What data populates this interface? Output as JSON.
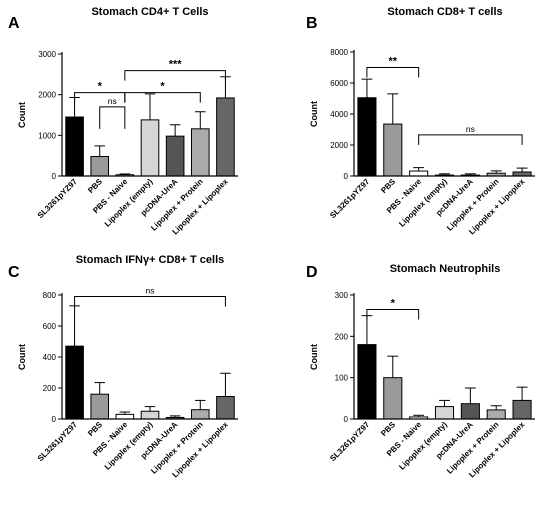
{
  "chart_data": [
    {
      "type": "bar",
      "panel": "A",
      "title": "Stomach CD4+ T Cells",
      "ylabel": "Count",
      "ylim": [
        0,
        3000
      ],
      "yticks": [
        0,
        1000,
        2000,
        3000
      ],
      "categories": [
        "SL3261pYZ97",
        "PBS",
        "PBS - Naive",
        "Lipoplex (empty)",
        "pcDNA-UreA",
        "Lipoplex + Protein",
        "Lipoplex + Lipoplex"
      ],
      "values": [
        1450,
        480,
        30,
        1380,
        980,
        1160,
        1920
      ],
      "errors": [
        480,
        260,
        20,
        640,
        280,
        420,
        520
      ],
      "colors": [
        "#000000",
        "#9a9a9a",
        "#ffffff",
        "#d6d6d6",
        "#555555",
        "#ababab",
        "#666666"
      ],
      "significance": [
        {
          "from": 0,
          "to": 2,
          "label": "*",
          "y": 2050
        },
        {
          "from": 1,
          "to": 2,
          "label": "ns",
          "y": 1700
        },
        {
          "from": 2,
          "to": 5,
          "label": "*",
          "y": 2050
        },
        {
          "from": 2,
          "to": 6,
          "label": "***",
          "y": 2590
        }
      ]
    },
    {
      "type": "bar",
      "panel": "B",
      "title": "Stomach CD8+ T cells",
      "ylabel": "Count",
      "ylim": [
        0,
        8000
      ],
      "yticks": [
        0,
        2000,
        4000,
        6000,
        8000
      ],
      "categories": [
        "SL3261pYZ97",
        "PBS",
        "PBS - Naive",
        "Lipoplex (empty)",
        "pcDNA-UreA",
        "Lipoplex + Protein",
        "Lipoplex + Lipoplex"
      ],
      "values": [
        5050,
        3350,
        320,
        60,
        60,
        180,
        260
      ],
      "errors": [
        1200,
        1950,
        220,
        80,
        80,
        150,
        250
      ],
      "colors": [
        "#000000",
        "#9a9a9a",
        "#ffffff",
        "#d6d6d6",
        "#555555",
        "#ababab",
        "#666666"
      ],
      "significance": [
        {
          "from": 0,
          "to": 2,
          "label": "**",
          "y": 7000
        },
        {
          "from": 2,
          "to": 6,
          "label": "ns",
          "y": 2650
        }
      ]
    },
    {
      "type": "bar",
      "panel": "C",
      "title": "Stomach IFNγ+ CD8+ T cells",
      "ylabel": "Count",
      "ylim": [
        0,
        800
      ],
      "yticks": [
        0,
        200,
        400,
        600,
        800
      ],
      "categories": [
        "SL3261pYZ97",
        "PBS",
        "PBS - Naive",
        "Lipoplex (empty)",
        "pcDNA-UreA",
        "Lipoplex + Protein",
        "Lipoplex + Lipoplex"
      ],
      "values": [
        470,
        160,
        30,
        50,
        10,
        60,
        145
      ],
      "errors": [
        260,
        75,
        15,
        30,
        10,
        60,
        150
      ],
      "colors": [
        "#000000",
        "#9a9a9a",
        "#ffffff",
        "#d6d6d6",
        "#555555",
        "#ababab",
        "#666666"
      ],
      "significance": [
        {
          "from": 0,
          "to": 6,
          "label": "ns",
          "y": 790
        }
      ]
    },
    {
      "type": "bar",
      "panel": "D",
      "title": "Stomach Neutrophils",
      "ylabel": "Count",
      "ylim": [
        0,
        300
      ],
      "yticks": [
        0,
        100,
        200,
        300
      ],
      "categories": [
        "SL3261pYZ97",
        "PBS",
        "PBS - Naive",
        "Lipoplex (empty)",
        "pcDNA-UreA",
        "Lipoplex + Protein",
        "Lipoplex + Lipoplex"
      ],
      "values": [
        180,
        100,
        5,
        30,
        37,
        22,
        45
      ],
      "errors": [
        70,
        52,
        4,
        15,
        38,
        10,
        32
      ],
      "colors": [
        "#000000",
        "#9a9a9a",
        "#ffffff",
        "#d6d6d6",
        "#555555",
        "#ababab",
        "#666666"
      ],
      "significance": [
        {
          "from": 0,
          "to": 2,
          "label": "*",
          "y": 265
        }
      ]
    }
  ]
}
